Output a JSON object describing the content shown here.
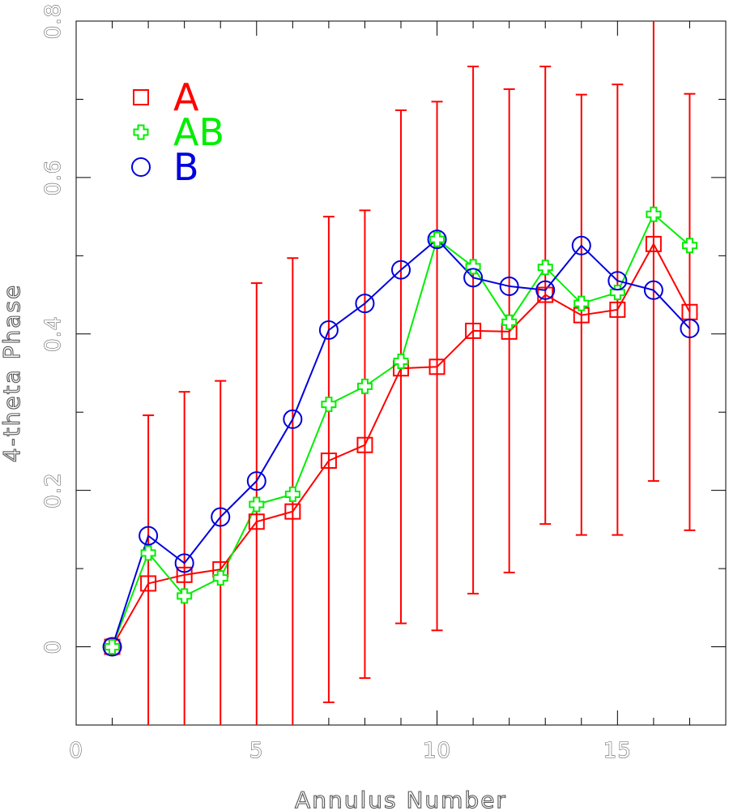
{
  "chart_data": {
    "type": "line",
    "title": "",
    "xlabel": "Annulus Number",
    "ylabel": "4-theta Phase",
    "xlim": [
      0,
      18
    ],
    "ylim": [
      -0.1,
      0.8
    ],
    "x_ticks": [
      "0",
      "5",
      "10",
      "15"
    ],
    "y_ticks": [
      "0",
      "0.2",
      "0.4",
      "0.6",
      "0.8"
    ],
    "grid": false,
    "legend_position": "top-left",
    "series": [
      {
        "name": "A",
        "color": "#ff0000",
        "marker": "square",
        "x": [
          1,
          2,
          3,
          4,
          5,
          6,
          7,
          8,
          9,
          10,
          11,
          12,
          13,
          14,
          15,
          16,
          17
        ],
        "y": [
          0.0,
          0.081,
          0.092,
          0.099,
          0.16,
          0.173,
          0.238,
          0.258,
          0.356,
          0.358,
          0.404,
          0.403,
          0.45,
          0.424,
          0.431,
          0.515,
          0.428
        ],
        "error_low": [
          -0.01,
          -0.1,
          -0.1,
          -0.1,
          -0.1,
          -0.1,
          -0.071,
          -0.04,
          0.03,
          0.021,
          0.068,
          0.095,
          0.157,
          0.143,
          0.143,
          0.212,
          0.149
        ],
        "error_high": [
          0.01,
          0.296,
          0.326,
          0.34,
          0.465,
          0.497,
          0.55,
          0.558,
          0.686,
          0.697,
          0.742,
          0.713,
          0.742,
          0.706,
          0.719,
          0.8,
          0.707
        ]
      },
      {
        "name": "AB",
        "color": "#00ee00",
        "marker": "plus",
        "x": [
          1,
          2,
          3,
          4,
          5,
          6,
          7,
          8,
          9,
          10,
          11,
          12,
          13,
          14,
          15,
          16,
          17
        ],
        "y": [
          0.0,
          0.12,
          0.065,
          0.088,
          0.182,
          0.195,
          0.31,
          0.333,
          0.365,
          0.521,
          0.486,
          0.415,
          0.485,
          0.439,
          0.453,
          0.553,
          0.513
        ]
      },
      {
        "name": "B",
        "color": "#0000dd",
        "marker": "circle",
        "x": [
          1,
          2,
          3,
          4,
          5,
          6,
          7,
          8,
          9,
          10,
          11,
          12,
          13,
          14,
          15,
          16,
          17
        ],
        "y": [
          0.0,
          0.142,
          0.107,
          0.166,
          0.212,
          0.291,
          0.405,
          0.439,
          0.482,
          0.521,
          0.472,
          0.461,
          0.456,
          0.513,
          0.468,
          0.456,
          0.407
        ]
      }
    ]
  }
}
